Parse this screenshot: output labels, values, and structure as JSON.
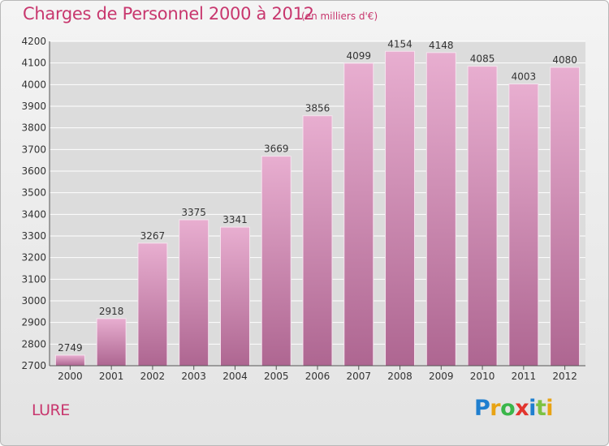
{
  "header": {
    "title": "Charges de Personnel 2000 à 2012",
    "unit": "(en milliers d'€)"
  },
  "footer": {
    "place": "LURE",
    "logo": {
      "letters": [
        "P",
        "r",
        "o",
        "x",
        "i",
        "t",
        "i"
      ],
      "colors": [
        "#1f7fcf",
        "#e8a314",
        "#3ab64a",
        "#e2342d",
        "#1f7fcf",
        "#7cc242",
        "#e8a314"
      ]
    }
  },
  "colors": {
    "bar_top": "#e8aed0",
    "bar_bottom": "#ae6691",
    "grid": "#ffffff",
    "text": "#333333",
    "accent": "#c8376e"
  },
  "chart_data": {
    "type": "bar",
    "categories": [
      "2000",
      "2001",
      "2002",
      "2003",
      "2004",
      "2005",
      "2006",
      "2007",
      "2008",
      "2009",
      "2010",
      "2011",
      "2012"
    ],
    "values": [
      2749,
      2918,
      3267,
      3375,
      3341,
      3669,
      3856,
      4099,
      4154,
      4148,
      4085,
      4003,
      4080
    ],
    "data_labels": [
      "2749",
      "2918",
      "3267",
      "3375",
      "3341",
      "3669",
      "3856",
      "4099",
      "4154",
      "4148",
      "4085",
      "4003",
      "4080"
    ],
    "title": "Charges de Personnel 2000 à 2012",
    "xlabel": "",
    "ylabel": "",
    "ylim": [
      2700,
      4200
    ],
    "yticks": [
      2700,
      2800,
      2900,
      3000,
      3100,
      3200,
      3300,
      3400,
      3500,
      3600,
      3700,
      3800,
      3900,
      4000,
      4100,
      4200
    ],
    "grid": true,
    "legend": "none"
  }
}
